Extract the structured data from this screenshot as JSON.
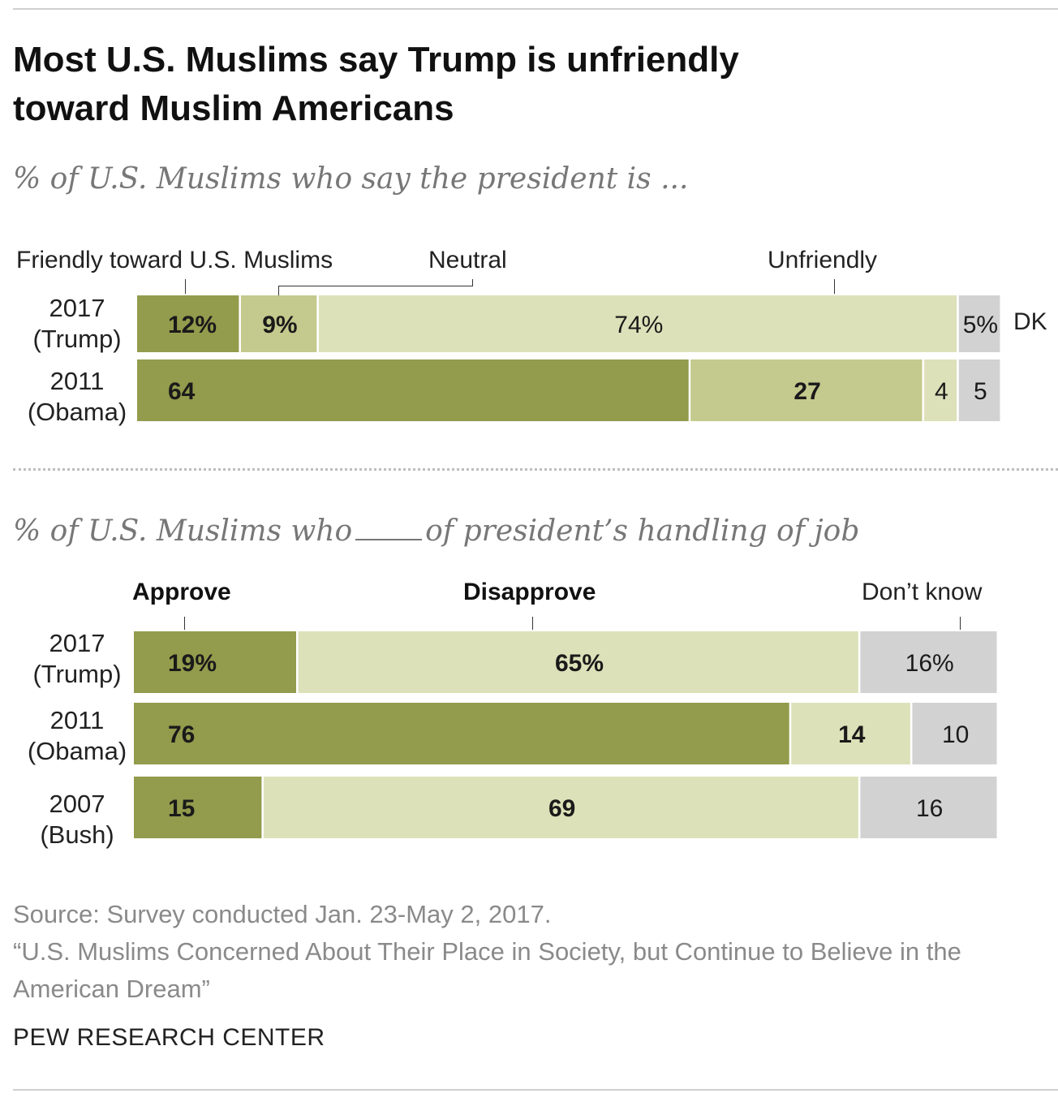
{
  "title_line1": "Most U.S. Muslims say Trump is unfriendly",
  "title_line2": "toward Muslim Americans",
  "source": {
    "line1": "Source: Survey conducted Jan. 23-May 2, 2017.",
    "line2": "“U.S. Muslims Concerned About Their Place in Society, but Continue to Believe in the American Dream”"
  },
  "brand": "PEW RESEARCH CENTER",
  "colors": {
    "dark_green": "#939b4c",
    "mid_green": "#c4c98d",
    "light_green": "#dde1b9",
    "gray": "#d2d2d3",
    "text_dark": "#1a1a1a"
  },
  "chart_data": [
    {
      "type": "bar",
      "orientation": "horizontal",
      "stacked": true,
      "subtitle": "% of U.S. Muslims who say the president is ...",
      "legend": [
        "Friendly toward U.S. Muslims",
        "Neutral",
        "Unfriendly",
        "DK"
      ],
      "categories": [
        {
          "year": "2017",
          "president": "(Trump)"
        },
        {
          "year": "2011",
          "president": "(Obama)"
        }
      ],
      "series": [
        {
          "name": "Friendly toward U.S. Muslims",
          "values": [
            12,
            64
          ],
          "labels": [
            "12%",
            "64"
          ],
          "color": "dark_green",
          "bold": true
        },
        {
          "name": "Neutral",
          "values": [
            9,
            27
          ],
          "labels": [
            "9%",
            "27"
          ],
          "color": "mid_green",
          "bold": true
        },
        {
          "name": "Unfriendly",
          "values": [
            74,
            4
          ],
          "labels": [
            "74%",
            "4"
          ],
          "color": "light_green",
          "bold": false
        },
        {
          "name": "DK",
          "values": [
            5,
            5
          ],
          "labels": [
            "5%",
            "5"
          ],
          "color": "gray",
          "bold": false
        }
      ],
      "xlim": [
        0,
        100
      ]
    },
    {
      "type": "bar",
      "orientation": "horizontal",
      "stacked": true,
      "subtitle_before": "% of U.S. Muslims who",
      "subtitle_after": "of president’s handling of job",
      "legend": [
        "Approve",
        "Disapprove",
        "Don’t know"
      ],
      "categories": [
        {
          "year": "2017",
          "president": "(Trump)"
        },
        {
          "year": "2011",
          "president": "(Obama)"
        },
        {
          "year": "2007",
          "president": "(Bush)"
        }
      ],
      "series": [
        {
          "name": "Approve",
          "values": [
            19,
            76,
            15
          ],
          "labels": [
            "19%",
            "76",
            "15"
          ],
          "color": "dark_green",
          "bold": true
        },
        {
          "name": "Disapprove",
          "values": [
            65,
            14,
            69
          ],
          "labels": [
            "65%",
            "14",
            "69"
          ],
          "color": "light_green",
          "bold": true
        },
        {
          "name": "Don’t know",
          "values": [
            16,
            10,
            16
          ],
          "labels": [
            "16%",
            "10",
            "16"
          ],
          "color": "gray",
          "bold": false
        }
      ],
      "xlim": [
        0,
        100
      ]
    }
  ]
}
